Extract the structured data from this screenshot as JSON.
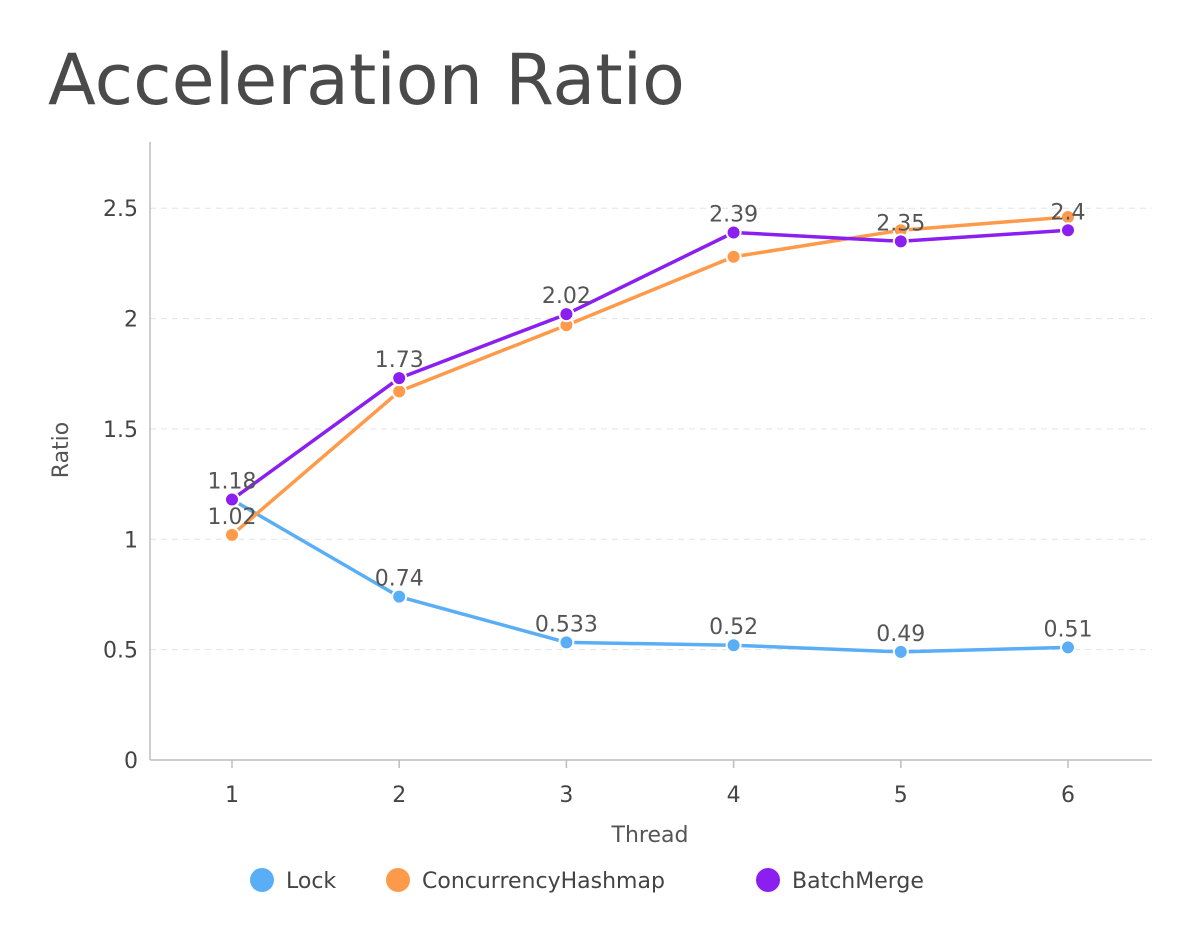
{
  "chart_data": {
    "type": "line",
    "title": "Acceleration Ratio",
    "xlabel": "Thread",
    "ylabel": "Ratio",
    "categories": [
      "1",
      "2",
      "3",
      "4",
      "5",
      "6"
    ],
    "ylim": [
      0,
      2.8
    ],
    "yticks": [
      0,
      0.5,
      1,
      1.5,
      2,
      2.5
    ],
    "ytick_labels": [
      "0",
      "0.5",
      "1",
      "1.5",
      "2",
      "2.5"
    ],
    "grid": true,
    "legend_position": "bottom",
    "series": [
      {
        "name": "Lock",
        "color": "#5aaef5",
        "values": [
          1.18,
          0.74,
          0.533,
          0.52,
          0.49,
          0.51
        ],
        "labels": [
          "",
          "0.74",
          "0.533",
          "0.52",
          "0.49",
          "0.51"
        ]
      },
      {
        "name": "ConcurrencyHashmap",
        "color": "#ff9a4a",
        "values": [
          1.02,
          1.67,
          1.97,
          2.28,
          2.4,
          2.46
        ],
        "labels": [
          "1.02",
          "",
          "",
          "",
          "",
          ""
        ]
      },
      {
        "name": "BatchMerge",
        "color": "#8b1ff0",
        "values": [
          1.18,
          1.73,
          2.02,
          2.39,
          2.35,
          2.4
        ],
        "labels": [
          "1.18",
          "1.73",
          "2.02",
          "2.39",
          "2.35",
          "2.4"
        ]
      }
    ]
  }
}
